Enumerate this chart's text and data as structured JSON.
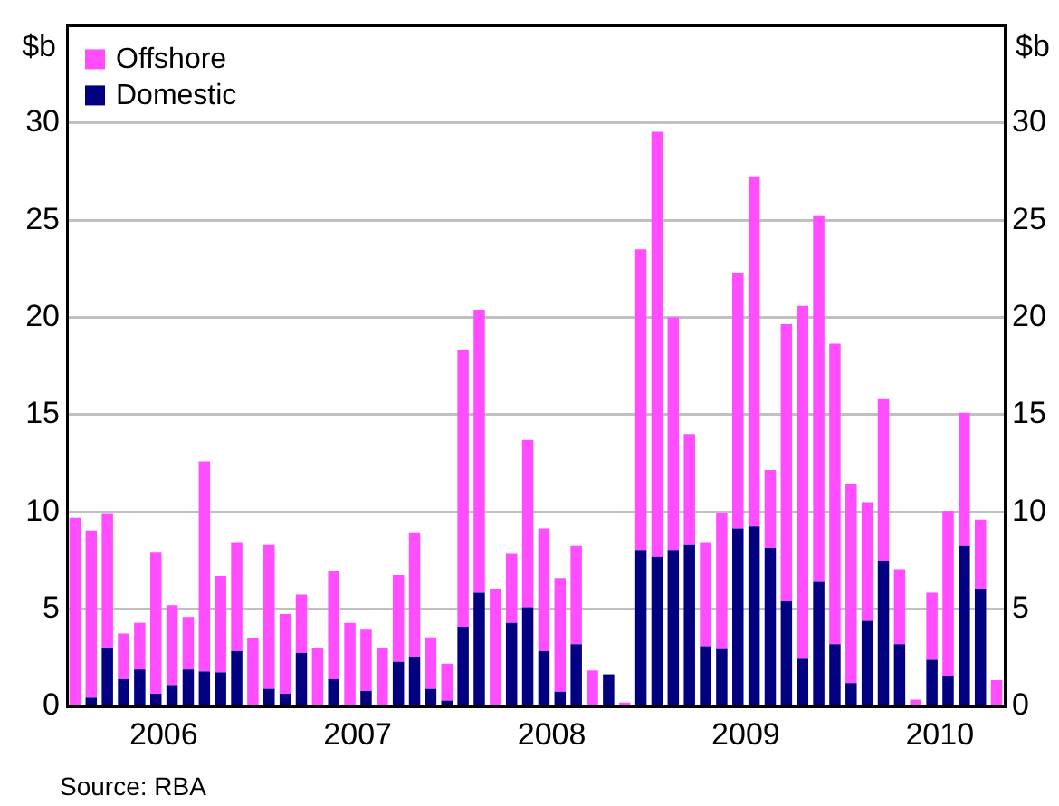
{
  "chart_data": {
    "type": "bar",
    "stacked": true,
    "categories": [
      null,
      null,
      null,
      null,
      null,
      "2006",
      null,
      null,
      null,
      null,
      null,
      null,
      null,
      null,
      null,
      null,
      null,
      "2007",
      null,
      null,
      null,
      null,
      null,
      null,
      null,
      null,
      null,
      null,
      null,
      "2008",
      null,
      null,
      null,
      null,
      null,
      null,
      null,
      null,
      null,
      null,
      null,
      "2009",
      null,
      null,
      null,
      null,
      null,
      null,
      null,
      null,
      null,
      null,
      null,
      "2010",
      null,
      null,
      null,
      null
    ],
    "series": [
      {
        "name": "Domestic",
        "color": "#000080",
        "values": [
          0,
          0.45,
          3.0,
          1.4,
          1.9,
          0.65,
          1.1,
          1.9,
          1.8,
          1.75,
          2.85,
          0,
          0.9,
          0.65,
          2.75,
          0,
          1.4,
          0,
          0.8,
          0,
          2.3,
          2.55,
          0.9,
          0.3,
          4.1,
          5.85,
          0,
          4.3,
          5.1,
          2.85,
          0.75,
          3.2,
          0,
          1.65,
          0,
          8.05,
          7.7,
          8.05,
          8.3,
          3.1,
          2.95,
          9.15,
          9.25,
          8.15,
          5.4,
          2.45,
          6.4,
          3.2,
          1.2,
          4.4,
          7.5,
          3.2,
          0,
          2.4,
          1.55,
          8.25,
          6.05,
          0
        ]
      },
      {
        "name": "Offshore",
        "color": "#ff4dff",
        "values": [
          9.7,
          8.6,
          6.9,
          2.35,
          2.4,
          7.25,
          4.1,
          2.7,
          10.8,
          4.95,
          5.55,
          3.5,
          7.4,
          4.1,
          3.0,
          3.0,
          5.55,
          4.3,
          3.15,
          3.0,
          4.45,
          6.4,
          2.65,
          1.9,
          14.2,
          14.55,
          6.05,
          3.55,
          8.6,
          6.3,
          5.85,
          5.05,
          1.85,
          0,
          0.2,
          15.45,
          21.85,
          11.95,
          5.7,
          5.3,
          7.0,
          13.15,
          18.0,
          4.0,
          14.25,
          18.15,
          18.85,
          15.45,
          10.25,
          6.1,
          8.3,
          3.85,
          0.35,
          3.45,
          8.5,
          6.85,
          3.55,
          1.35
        ]
      }
    ],
    "ylabel": "$b",
    "y2label": "$b",
    "ylim": [
      0,
      35
    ],
    "yticks": [
      0,
      5,
      10,
      15,
      20,
      25,
      30
    ],
    "y2lim": [
      0,
      35
    ],
    "y2ticks": [
      0,
      5,
      10,
      15,
      20,
      25,
      30
    ],
    "grid": "y",
    "legend": "top left",
    "annotations": [
      "Source: RBA"
    ]
  }
}
